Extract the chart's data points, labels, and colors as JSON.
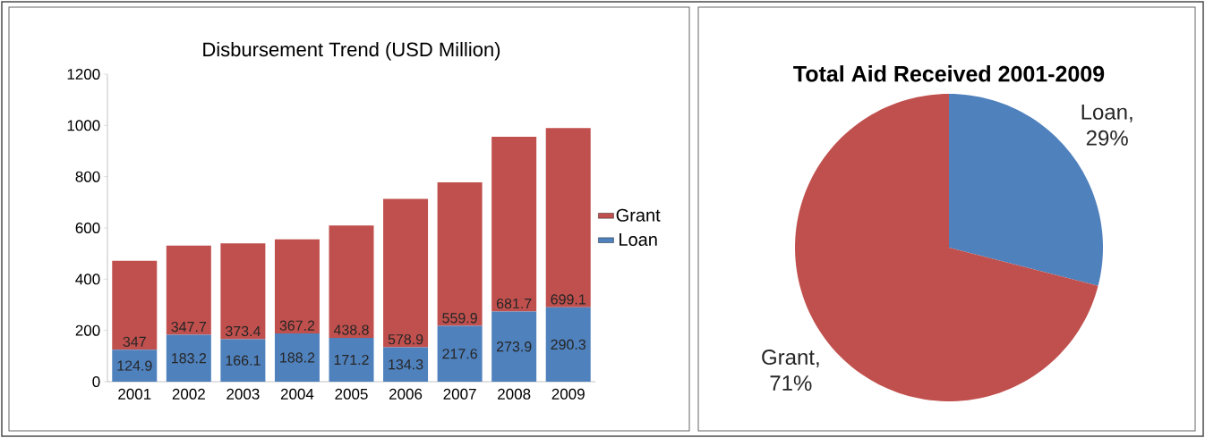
{
  "chart_data": [
    {
      "type": "bar",
      "title": "Disbursement  Trend (USD Million)",
      "stacked": true,
      "categories": [
        "2001",
        "2002",
        "2003",
        "2004",
        "2005",
        "2006",
        "2007",
        "2008",
        "2009"
      ],
      "series": [
        {
          "name": "Loan",
          "color": "#4f81bd",
          "values": [
            124.9,
            183.2,
            166.1,
            188.2,
            171.2,
            134.3,
            217.6,
            273.9,
            290.3
          ]
        },
        {
          "name": "Grant",
          "color": "#c0504d",
          "values": [
            347,
            347.7,
            373.4,
            367.2,
            438.8,
            578.9,
            559.9,
            681.7,
            699.1
          ]
        }
      ],
      "ylim": [
        0,
        1200
      ],
      "yticks": [
        0,
        200,
        400,
        600,
        800,
        1000,
        1200
      ],
      "legend": "right",
      "data_labels": true
    },
    {
      "type": "pie",
      "title": "Total Aid Received 2001-2009",
      "categories": [
        "Loan",
        "Grant"
      ],
      "values": [
        29,
        71
      ],
      "colors": [
        "#4f81bd",
        "#c0504d"
      ],
      "value_labels": [
        ", 29%",
        ", 71%"
      ],
      "data_labels": true
    }
  ]
}
